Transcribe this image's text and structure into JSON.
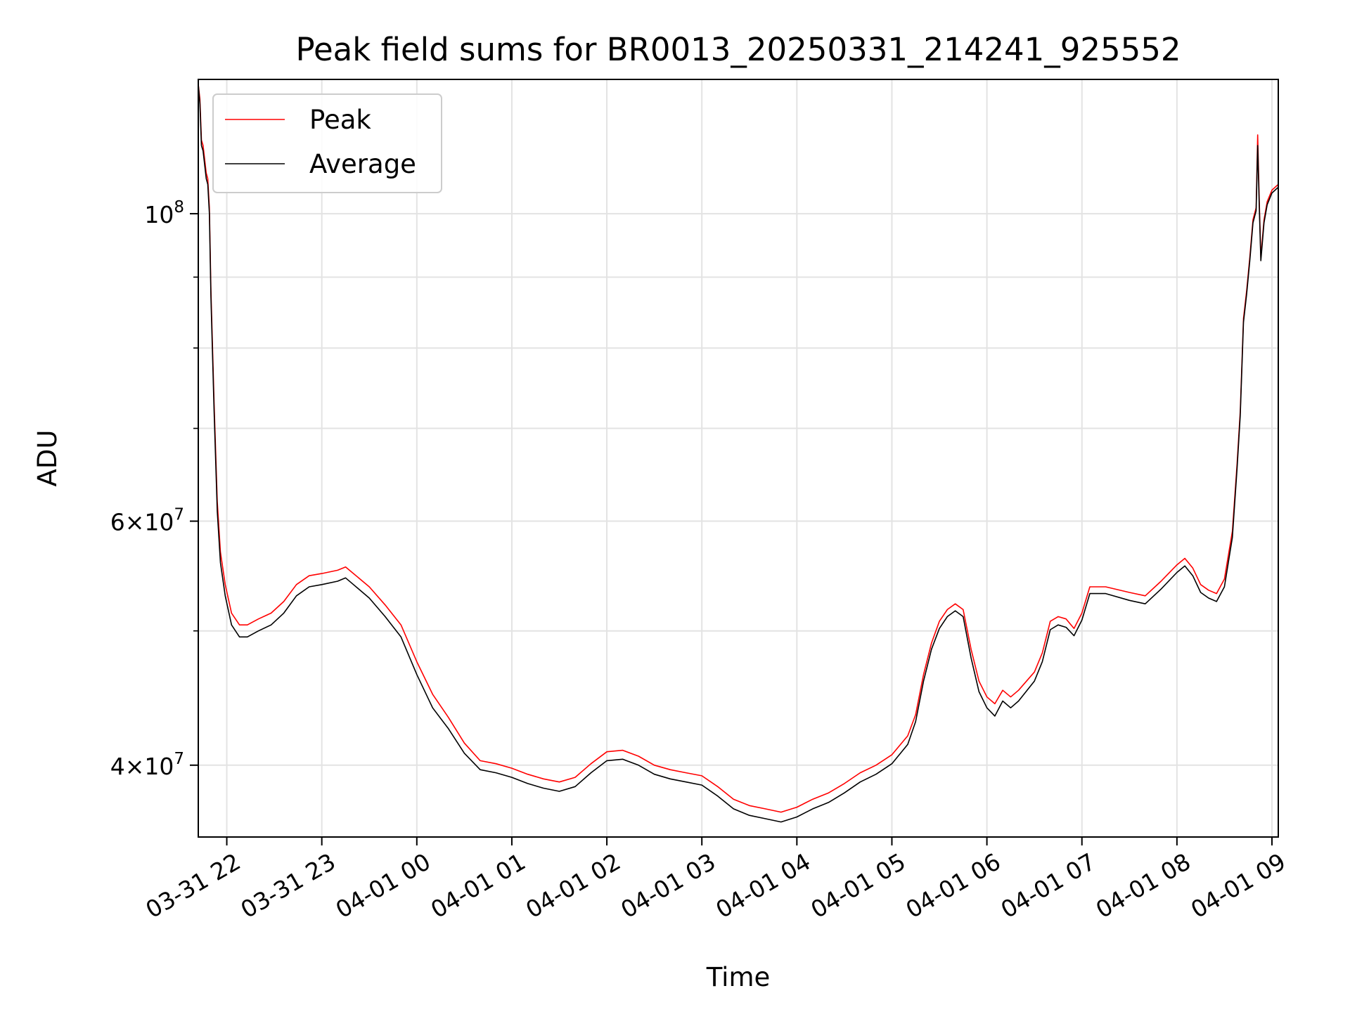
{
  "chart_data": {
    "type": "line",
    "title": "Peak field sums for BR0013_20250331_214241_925552",
    "xlabel": "Time",
    "ylabel": "ADU",
    "yscale": "log",
    "ylim": [
      35500000,
      125000000
    ],
    "xlim": [
      "2025-03-31 21:42",
      "2025-04-01 09:04"
    ],
    "grid": true,
    "legend_position": "upper left",
    "x_ticks": [
      {
        "x": "2025-03-31 22:00",
        "label": "03-31 22"
      },
      {
        "x": "2025-03-31 23:00",
        "label": "03-31 23"
      },
      {
        "x": "2025-04-01 00:00",
        "label": "04-01 00"
      },
      {
        "x": "2025-04-01 01:00",
        "label": "04-01 01"
      },
      {
        "x": "2025-04-01 02:00",
        "label": "04-01 02"
      },
      {
        "x": "2025-04-01 03:00",
        "label": "04-01 03"
      },
      {
        "x": "2025-04-01 04:00",
        "label": "04-01 04"
      },
      {
        "x": "2025-04-01 05:00",
        "label": "04-01 05"
      },
      {
        "x": "2025-04-01 06:00",
        "label": "04-01 06"
      },
      {
        "x": "2025-04-01 07:00",
        "label": "04-01 07"
      },
      {
        "x": "2025-04-01 08:00",
        "label": "04-01 08"
      },
      {
        "x": "2025-04-01 09:00",
        "label": "04-01 09"
      }
    ],
    "y_major_ticks": [
      {
        "value": 40000000,
        "mant": "4",
        "exp": "7"
      },
      {
        "value": 60000000,
        "mant": "6",
        "exp": "7"
      },
      {
        "value": 100000000,
        "mant": "",
        "exp": "8"
      }
    ],
    "y_minor_gridlines": [
      50000000,
      70000000,
      80000000,
      90000000
    ],
    "series": [
      {
        "name": "Peak",
        "color": "#ff0000",
        "points": [
          [
            "2025-03-31 21:42",
            124000000
          ],
          [
            "2025-03-31 21:43",
            121000000
          ],
          [
            "2025-03-31 21:44",
            113000000
          ],
          [
            "2025-03-31 21:45",
            112000000
          ],
          [
            "2025-03-31 21:47",
            107000000
          ],
          [
            "2025-03-31 21:48",
            106000000
          ],
          [
            "2025-03-31 21:49",
            101000000
          ],
          [
            "2025-03-31 21:50",
            88000000
          ],
          [
            "2025-03-31 21:52",
            73000000
          ],
          [
            "2025-03-31 21:54",
            62000000
          ],
          [
            "2025-03-31 21:56",
            57000000
          ],
          [
            "2025-03-31 21:59",
            54000000
          ],
          [
            "2025-03-31 22:03",
            51500000
          ],
          [
            "2025-03-31 22:08",
            50500000
          ],
          [
            "2025-03-31 22:13",
            50500000
          ],
          [
            "2025-03-31 22:20",
            51000000
          ],
          [
            "2025-03-31 22:28",
            51500000
          ],
          [
            "2025-03-31 22:36",
            52500000
          ],
          [
            "2025-03-31 22:44",
            54000000
          ],
          [
            "2025-03-31 22:52",
            54800000
          ],
          [
            "2025-03-31 23:00",
            55000000
          ],
          [
            "2025-03-31 23:10",
            55300000
          ],
          [
            "2025-03-31 23:15",
            55600000
          ],
          [
            "2025-03-31 23:20",
            55000000
          ],
          [
            "2025-03-31 23:30",
            53800000
          ],
          [
            "2025-03-31 23:40",
            52200000
          ],
          [
            "2025-03-31 23:50",
            50500000
          ],
          [
            "2025-04-01 00:00",
            47500000
          ],
          [
            "2025-04-01 00:10",
            45000000
          ],
          [
            "2025-04-01 00:20",
            43300000
          ],
          [
            "2025-04-01 00:30",
            41500000
          ],
          [
            "2025-04-01 00:40",
            40300000
          ],
          [
            "2025-04-01 00:50",
            40100000
          ],
          [
            "2025-04-01 01:00",
            39800000
          ],
          [
            "2025-04-01 01:10",
            39400000
          ],
          [
            "2025-04-01 01:20",
            39100000
          ],
          [
            "2025-04-01 01:30",
            38900000
          ],
          [
            "2025-04-01 01:40",
            39200000
          ],
          [
            "2025-04-01 01:50",
            40100000
          ],
          [
            "2025-04-01 02:00",
            40900000
          ],
          [
            "2025-04-01 02:10",
            41000000
          ],
          [
            "2025-04-01 02:20",
            40600000
          ],
          [
            "2025-04-01 02:30",
            40000000
          ],
          [
            "2025-04-01 02:40",
            39700000
          ],
          [
            "2025-04-01 02:50",
            39500000
          ],
          [
            "2025-04-01 03:00",
            39300000
          ],
          [
            "2025-04-01 03:10",
            38600000
          ],
          [
            "2025-04-01 03:20",
            37800000
          ],
          [
            "2025-04-01 03:30",
            37400000
          ],
          [
            "2025-04-01 03:40",
            37200000
          ],
          [
            "2025-04-01 03:50",
            37000000
          ],
          [
            "2025-04-01 04:00",
            37300000
          ],
          [
            "2025-04-01 04:10",
            37800000
          ],
          [
            "2025-04-01 04:20",
            38200000
          ],
          [
            "2025-04-01 04:30",
            38800000
          ],
          [
            "2025-04-01 04:40",
            39500000
          ],
          [
            "2025-04-01 04:50",
            40000000
          ],
          [
            "2025-04-01 05:00",
            40700000
          ],
          [
            "2025-04-01 05:10",
            42000000
          ],
          [
            "2025-04-01 05:15",
            43500000
          ],
          [
            "2025-04-01 05:20",
            46500000
          ],
          [
            "2025-04-01 05:25",
            49000000
          ],
          [
            "2025-04-01 05:30",
            50800000
          ],
          [
            "2025-04-01 05:35",
            51800000
          ],
          [
            "2025-04-01 05:40",
            52300000
          ],
          [
            "2025-04-01 05:45",
            51800000
          ],
          [
            "2025-04-01 05:50",
            48500000
          ],
          [
            "2025-04-01 05:55",
            46000000
          ],
          [
            "2025-04-01 06:00",
            44800000
          ],
          [
            "2025-04-01 06:05",
            44300000
          ],
          [
            "2025-04-01 06:10",
            45300000
          ],
          [
            "2025-04-01 06:15",
            44800000
          ],
          [
            "2025-04-01 06:20",
            45300000
          ],
          [
            "2025-04-01 06:30",
            46700000
          ],
          [
            "2025-04-01 06:35",
            48200000
          ],
          [
            "2025-04-01 06:40",
            50800000
          ],
          [
            "2025-04-01 06:45",
            51200000
          ],
          [
            "2025-04-01 06:50",
            51000000
          ],
          [
            "2025-04-01 06:55",
            50200000
          ],
          [
            "2025-04-01 07:00",
            51500000
          ],
          [
            "2025-04-01 07:05",
            53800000
          ],
          [
            "2025-04-01 07:15",
            53800000
          ],
          [
            "2025-04-01 07:30",
            53300000
          ],
          [
            "2025-04-01 07:40",
            53000000
          ],
          [
            "2025-04-01 07:50",
            54300000
          ],
          [
            "2025-04-01 08:00",
            55800000
          ],
          [
            "2025-04-01 08:05",
            56400000
          ],
          [
            "2025-04-01 08:10",
            55500000
          ],
          [
            "2025-04-01 08:15",
            54000000
          ],
          [
            "2025-04-01 08:20",
            53500000
          ],
          [
            "2025-04-01 08:25",
            53200000
          ],
          [
            "2025-04-01 08:30",
            54500000
          ],
          [
            "2025-04-01 08:35",
            59000000
          ],
          [
            "2025-04-01 08:38",
            66000000
          ],
          [
            "2025-04-01 08:40",
            72000000
          ],
          [
            "2025-04-01 08:42",
            84000000
          ],
          [
            "2025-04-01 08:44",
            88000000
          ],
          [
            "2025-04-01 08:46",
            93000000
          ],
          [
            "2025-04-01 08:48",
            99000000
          ],
          [
            "2025-04-01 08:50",
            101000000
          ],
          [
            "2025-04-01 08:51",
            114000000
          ],
          [
            "2025-04-01 08:52",
            102000000
          ],
          [
            "2025-04-01 08:53",
            93000000
          ],
          [
            "2025-04-01 08:55",
            99000000
          ],
          [
            "2025-04-01 08:57",
            102000000
          ],
          [
            "2025-04-01 09:00",
            104000000
          ],
          [
            "2025-04-01 09:04",
            105000000
          ]
        ]
      },
      {
        "name": "Average",
        "color": "#000000",
        "points": [
          [
            "2025-03-31 21:42",
            124000000
          ],
          [
            "2025-03-31 21:43",
            120000000
          ],
          [
            "2025-03-31 21:44",
            112000000
          ],
          [
            "2025-03-31 21:45",
            111000000
          ],
          [
            "2025-03-31 21:47",
            106000000
          ],
          [
            "2025-03-31 21:48",
            105000000
          ],
          [
            "2025-03-31 21:49",
            100000000
          ],
          [
            "2025-03-31 21:50",
            87000000
          ],
          [
            "2025-03-31 21:52",
            72000000
          ],
          [
            "2025-03-31 21:54",
            61000000
          ],
          [
            "2025-03-31 21:56",
            56000000
          ],
          [
            "2025-03-31 21:59",
            53000000
          ],
          [
            "2025-03-31 22:03",
            50500000
          ],
          [
            "2025-03-31 22:08",
            49500000
          ],
          [
            "2025-03-31 22:13",
            49500000
          ],
          [
            "2025-03-31 22:20",
            50000000
          ],
          [
            "2025-03-31 22:28",
            50500000
          ],
          [
            "2025-03-31 22:36",
            51500000
          ],
          [
            "2025-03-31 22:44",
            53000000
          ],
          [
            "2025-03-31 22:52",
            53800000
          ],
          [
            "2025-03-31 23:00",
            54000000
          ],
          [
            "2025-03-31 23:10",
            54300000
          ],
          [
            "2025-03-31 23:15",
            54600000
          ],
          [
            "2025-03-31 23:20",
            54000000
          ],
          [
            "2025-03-31 23:30",
            52800000
          ],
          [
            "2025-03-31 23:40",
            51200000
          ],
          [
            "2025-03-31 23:50",
            49500000
          ],
          [
            "2025-04-01 00:00",
            46500000
          ],
          [
            "2025-04-01 00:10",
            44000000
          ],
          [
            "2025-04-01 00:20",
            42500000
          ],
          [
            "2025-04-01 00:30",
            40800000
          ],
          [
            "2025-04-01 00:40",
            39700000
          ],
          [
            "2025-04-01 00:50",
            39500000
          ],
          [
            "2025-04-01 01:00",
            39200000
          ],
          [
            "2025-04-01 01:10",
            38800000
          ],
          [
            "2025-04-01 01:20",
            38500000
          ],
          [
            "2025-04-01 01:30",
            38300000
          ],
          [
            "2025-04-01 01:40",
            38600000
          ],
          [
            "2025-04-01 01:50",
            39500000
          ],
          [
            "2025-04-01 02:00",
            40300000
          ],
          [
            "2025-04-01 02:10",
            40400000
          ],
          [
            "2025-04-01 02:20",
            40000000
          ],
          [
            "2025-04-01 02:30",
            39400000
          ],
          [
            "2025-04-01 02:40",
            39100000
          ],
          [
            "2025-04-01 02:50",
            38900000
          ],
          [
            "2025-04-01 03:00",
            38700000
          ],
          [
            "2025-04-01 03:10",
            38000000
          ],
          [
            "2025-04-01 03:20",
            37200000
          ],
          [
            "2025-04-01 03:30",
            36800000
          ],
          [
            "2025-04-01 03:40",
            36600000
          ],
          [
            "2025-04-01 03:50",
            36400000
          ],
          [
            "2025-04-01 04:00",
            36700000
          ],
          [
            "2025-04-01 04:10",
            37200000
          ],
          [
            "2025-04-01 04:20",
            37600000
          ],
          [
            "2025-04-01 04:30",
            38200000
          ],
          [
            "2025-04-01 04:40",
            38900000
          ],
          [
            "2025-04-01 04:50",
            39400000
          ],
          [
            "2025-04-01 05:00",
            40100000
          ],
          [
            "2025-04-01 05:10",
            41400000
          ],
          [
            "2025-04-01 05:15",
            43000000
          ],
          [
            "2025-04-01 05:20",
            46000000
          ],
          [
            "2025-04-01 05:25",
            48500000
          ],
          [
            "2025-04-01 05:30",
            50200000
          ],
          [
            "2025-04-01 05:35",
            51200000
          ],
          [
            "2025-04-01 05:40",
            51700000
          ],
          [
            "2025-04-01 05:45",
            51200000
          ],
          [
            "2025-04-01 05:50",
            47800000
          ],
          [
            "2025-04-01 05:55",
            45200000
          ],
          [
            "2025-04-01 06:00",
            44000000
          ],
          [
            "2025-04-01 06:05",
            43400000
          ],
          [
            "2025-04-01 06:10",
            44500000
          ],
          [
            "2025-04-01 06:15",
            44000000
          ],
          [
            "2025-04-01 06:20",
            44500000
          ],
          [
            "2025-04-01 06:30",
            46000000
          ],
          [
            "2025-04-01 06:35",
            47500000
          ],
          [
            "2025-04-01 06:40",
            50100000
          ],
          [
            "2025-04-01 06:45",
            50500000
          ],
          [
            "2025-04-01 06:50",
            50300000
          ],
          [
            "2025-04-01 06:55",
            49600000
          ],
          [
            "2025-04-01 07:00",
            50900000
          ],
          [
            "2025-04-01 07:05",
            53200000
          ],
          [
            "2025-04-01 07:15",
            53200000
          ],
          [
            "2025-04-01 07:30",
            52600000
          ],
          [
            "2025-04-01 07:40",
            52300000
          ],
          [
            "2025-04-01 07:50",
            53600000
          ],
          [
            "2025-04-01 08:00",
            55100000
          ],
          [
            "2025-04-01 08:05",
            55700000
          ],
          [
            "2025-04-01 08:10",
            54800000
          ],
          [
            "2025-04-01 08:15",
            53300000
          ],
          [
            "2025-04-01 08:20",
            52800000
          ],
          [
            "2025-04-01 08:25",
            52500000
          ],
          [
            "2025-04-01 08:30",
            53800000
          ],
          [
            "2025-04-01 08:35",
            58400000
          ],
          [
            "2025-04-01 08:38",
            65500000
          ],
          [
            "2025-04-01 08:40",
            71500000
          ],
          [
            "2025-04-01 08:42",
            83500000
          ],
          [
            "2025-04-01 08:44",
            87500000
          ],
          [
            "2025-04-01 08:46",
            92500000
          ],
          [
            "2025-04-01 08:48",
            98500000
          ],
          [
            "2025-04-01 08:50",
            100500000
          ],
          [
            "2025-04-01 08:51",
            112000000
          ],
          [
            "2025-04-01 08:52",
            101000000
          ],
          [
            "2025-04-01 08:53",
            92500000
          ],
          [
            "2025-04-01 08:55",
            98500000
          ],
          [
            "2025-04-01 08:57",
            101500000
          ],
          [
            "2025-04-01 09:00",
            103500000
          ],
          [
            "2025-04-01 09:04",
            104500000
          ]
        ]
      }
    ]
  }
}
